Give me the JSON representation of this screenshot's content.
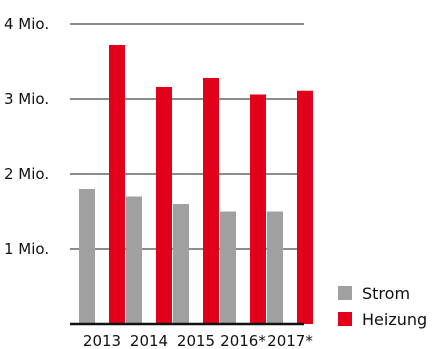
{
  "chart_data": {
    "type": "bar",
    "categories": [
      "2013",
      "2014",
      "2015",
      "2016*",
      "2017*"
    ],
    "series": [
      {
        "name": "Strom",
        "values": [
          1.8,
          1.7,
          1.6,
          1.5,
          1.5
        ],
        "color": "#a0a0a0"
      },
      {
        "name": "Heizung",
        "values": [
          3.72,
          3.16,
          3.28,
          3.06,
          3.11
        ],
        "color": "#e2001a"
      }
    ],
    "ylim": [
      0,
      4
    ],
    "yticks": [
      {
        "value": 1,
        "label": "1 Mio."
      },
      {
        "value": 2,
        "label": "2 Mio."
      },
      {
        "value": 3,
        "label": "3 Mio."
      },
      {
        "value": 4,
        "label": "4 Mio."
      }
    ],
    "grid": true,
    "legend_position": "bottom-right"
  }
}
